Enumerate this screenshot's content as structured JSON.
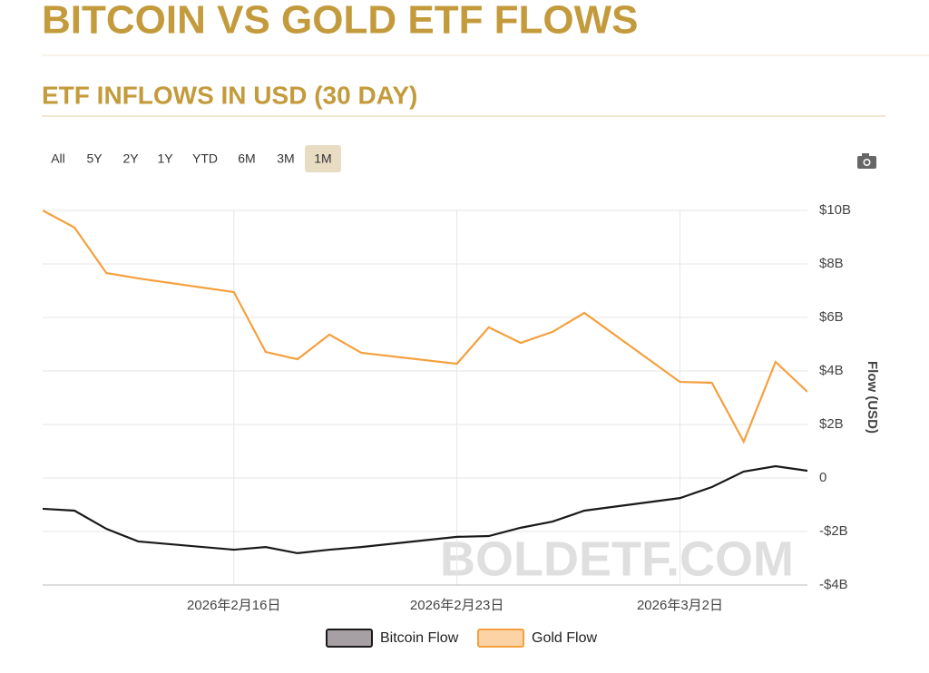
{
  "page_title": "BITCOIN VS GOLD ETF FLOWS",
  "range_buttons": [
    "All",
    "5Y",
    "2Y",
    "1Y",
    "YTD",
    "6M",
    "3M",
    "1M"
  ],
  "active_range": "1M",
  "chart_data": {
    "type": "line",
    "title": "ETF INFLOWS IN USD (30 DAY)",
    "y_label": "Flow (USD)",
    "watermark": "BOLDETF.COM",
    "x": [
      "2026-02-10",
      "2026-02-11",
      "2026-02-12",
      "2026-02-13",
      "2026-02-16",
      "2026-02-17",
      "2026-02-18",
      "2026-02-19",
      "2026-02-20",
      "2026-02-23",
      "2026-02-24",
      "2026-02-25",
      "2026-02-26",
      "2026-02-27",
      "2026-03-02",
      "2026-03-03",
      "2026-03-04",
      "2026-03-05",
      "2026-03-06"
    ],
    "xlim": [
      "2026-02-10",
      "2026-03-06"
    ],
    "xticks": [
      {
        "value": "2026-02-16",
        "label": "2026年2月16日"
      },
      {
        "value": "2026-02-23",
        "label": "2026年2月23日"
      },
      {
        "value": "2026-03-02",
        "label": "2026年3月2日"
      }
    ],
    "ylim": [
      -4,
      10
    ],
    "yticks": [
      {
        "value": -4,
        "label": "-$4B"
      },
      {
        "value": -2,
        "label": "-$2B"
      },
      0,
      {
        "value": 2,
        "label": "$2B"
      },
      {
        "value": 4,
        "label": "$4B"
      },
      {
        "value": 6,
        "label": "$6B"
      },
      {
        "value": 8,
        "label": "$8B"
      },
      {
        "value": 10,
        "label": "$10B"
      }
    ],
    "grid": true,
    "series": [
      {
        "name": "Bitcoin Flow",
        "color": "#1a1a1a",
        "legend_fill": "#a69fa3",
        "values": [
          -1.15,
          -1.22,
          -1.9,
          -2.37,
          -2.68,
          -2.58,
          -2.81,
          -2.68,
          -2.58,
          -2.2,
          -2.17,
          -1.86,
          -1.63,
          -1.22,
          -0.75,
          -0.34,
          0.24,
          0.44,
          0.27
        ]
      },
      {
        "name": "Gold Flow",
        "color": "#f5a03d",
        "legend_fill": "#fcd3a5",
        "values": [
          10.0,
          9.36,
          7.66,
          7.46,
          6.95,
          4.71,
          4.44,
          5.36,
          4.68,
          4.27,
          5.63,
          5.05,
          5.46,
          6.17,
          3.59,
          3.56,
          1.36,
          4.34,
          3.22
        ]
      }
    ]
  }
}
